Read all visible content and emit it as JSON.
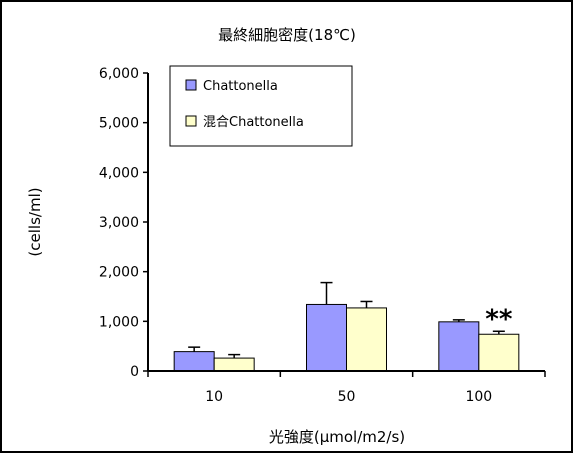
{
  "chart_data": {
    "type": "bar",
    "title": "最終細胞密度(18℃)",
    "xlabel": "光強度(μmol/m2/s)",
    "ylabel": "(cells/ml)",
    "categories": [
      "10",
      "50",
      "100"
    ],
    "ylim": [
      0,
      6000
    ],
    "yticks": [
      0,
      1000,
      2000,
      3000,
      4000,
      5000,
      6000
    ],
    "ytick_labels": [
      "0",
      "1,000",
      "2,000",
      "3,000",
      "4,000",
      "5,000",
      "6,000"
    ],
    "grid": false,
    "legend_position": "top-left",
    "series": [
      {
        "name": "Chattonella",
        "color": "#9999ff",
        "values": [
          390,
          1340,
          990
        ],
        "errors": [
          90,
          440,
          40
        ]
      },
      {
        "name": "混合Chattonella",
        "color": "#ffffcc",
        "values": [
          260,
          1270,
          740
        ],
        "errors": [
          70,
          130,
          60
        ]
      }
    ],
    "annotations": [
      {
        "text": "**",
        "category": "100",
        "series": 1
      }
    ]
  }
}
